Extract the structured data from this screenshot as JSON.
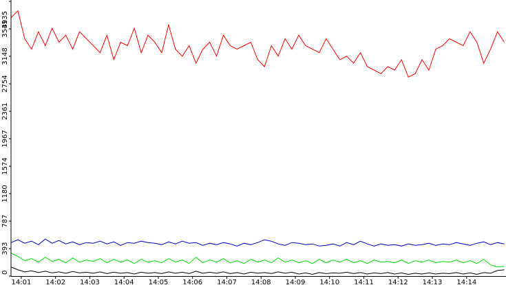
{
  "chart_data": {
    "type": "line",
    "title": "",
    "xlabel": "",
    "ylabel": "",
    "y_ticks": [
      "0",
      "393",
      "787",
      "1180",
      "1574",
      "1967",
      "2361",
      "2754",
      "3148",
      "3541",
      "3935"
    ],
    "ylim": [
      0,
      3935
    ],
    "x_ticks": [
      "14:01",
      "14:02",
      "14:03",
      "14:04",
      "14:05",
      "14:06",
      "14:07",
      "14:08",
      "14:09",
      "14:10",
      "14:11",
      "14:12",
      "14:13",
      "14:14"
    ],
    "xlim_minutes": [
      14.68,
      29.85
    ],
    "x_tick_minutes": [
      1,
      2,
      3,
      4,
      5,
      6,
      7,
      8,
      9,
      10,
      11,
      12,
      13,
      14
    ],
    "x_domain": [
      0.7,
      15.15
    ],
    "grid": false,
    "legend": "none",
    "series": [
      {
        "color": "#ff0000",
        "x": [
          0.7,
          0.9,
          1.1,
          1.3,
          1.5,
          1.7,
          1.9,
          2.1,
          2.3,
          2.5,
          2.7,
          2.9,
          3.1,
          3.3,
          3.5,
          3.7,
          3.9,
          4.1,
          4.3,
          4.5,
          4.7,
          4.9,
          5.1,
          5.3,
          5.5,
          5.7,
          5.9,
          6.1,
          6.3,
          6.5,
          6.7,
          6.9,
          7.1,
          7.3,
          7.5,
          7.7,
          7.9,
          8.1,
          8.3,
          8.5,
          8.7,
          8.9,
          9.1,
          9.3,
          9.5,
          9.7,
          9.9,
          10.1,
          10.3,
          10.5,
          10.7,
          10.9,
          11.1,
          11.3,
          11.5,
          11.7,
          11.9,
          12.1,
          12.3,
          12.5,
          12.7,
          12.9,
          13.1,
          13.3,
          13.5,
          13.7,
          13.9,
          14.1,
          14.3,
          14.5,
          14.7,
          14.9,
          15.1
        ],
        "values": [
          3700,
          3800,
          3400,
          3250,
          3500,
          3300,
          3550,
          3350,
          3450,
          3250,
          3500,
          3400,
          3300,
          3200,
          3450,
          3100,
          3350,
          3300,
          3550,
          3200,
          3450,
          3350,
          3200,
          3600,
          3250,
          3150,
          3300,
          3050,
          3250,
          3350,
          3150,
          3450,
          3300,
          3250,
          3300,
          3350,
          3100,
          3000,
          3300,
          3150,
          3400,
          3250,
          3450,
          3300,
          3250,
          3200,
          3400,
          3250,
          3100,
          3150,
          3050,
          3200,
          3000,
          2950,
          2900,
          3000,
          2950,
          3100,
          2850,
          2900,
          3100,
          2950,
          3250,
          3300,
          3400,
          3350,
          3300,
          3500,
          3350,
          3050,
          3250,
          3500,
          3350
        ]
      },
      {
        "color": "#0000c8",
        "x": [
          0.7,
          0.9,
          1.1,
          1.3,
          1.5,
          1.7,
          1.9,
          2.1,
          2.3,
          2.5,
          2.7,
          2.9,
          3.1,
          3.3,
          3.5,
          3.7,
          3.9,
          4.1,
          4.3,
          4.5,
          4.7,
          4.9,
          5.1,
          5.3,
          5.5,
          5.7,
          5.9,
          6.1,
          6.3,
          6.5,
          6.7,
          6.9,
          7.1,
          7.3,
          7.5,
          7.7,
          7.9,
          8.1,
          8.3,
          8.5,
          8.7,
          8.9,
          9.1,
          9.3,
          9.5,
          9.7,
          9.9,
          10.1,
          10.3,
          10.5,
          10.7,
          10.9,
          11.1,
          11.3,
          11.5,
          11.7,
          11.9,
          12.1,
          12.3,
          12.5,
          12.7,
          12.9,
          13.1,
          13.3,
          13.5,
          13.7,
          13.9,
          14.1,
          14.3,
          14.5,
          14.7,
          14.9,
          15.1
        ],
        "values": [
          480,
          520,
          470,
          500,
          450,
          530,
          470,
          510,
          460,
          490,
          450,
          480,
          470,
          500,
          460,
          490,
          440,
          480,
          470,
          500,
          480,
          470,
          450,
          490,
          460,
          500,
          470,
          480,
          440,
          470,
          450,
          480,
          460,
          430,
          470,
          450,
          480,
          520,
          500,
          460,
          440,
          480,
          470,
          450,
          460,
          430,
          440,
          460,
          430,
          480,
          450,
          500,
          460,
          430,
          460,
          440,
          450,
          430,
          460,
          440,
          450,
          470,
          440,
          460,
          450,
          480,
          460,
          440,
          470,
          490,
          450,
          480,
          460
        ]
      },
      {
        "color": "#00e000",
        "x": [
          0.7,
          0.9,
          1.1,
          1.3,
          1.5,
          1.7,
          1.9,
          2.1,
          2.3,
          2.5,
          2.7,
          2.9,
          3.1,
          3.3,
          3.5,
          3.7,
          3.9,
          4.1,
          4.3,
          4.5,
          4.7,
          4.9,
          5.1,
          5.3,
          5.5,
          5.7,
          5.9,
          6.1,
          6.3,
          6.5,
          6.7,
          6.9,
          7.1,
          7.3,
          7.5,
          7.7,
          7.9,
          8.1,
          8.3,
          8.5,
          8.7,
          8.9,
          9.1,
          9.3,
          9.5,
          9.7,
          9.9,
          10.1,
          10.3,
          10.5,
          10.7,
          10.9,
          11.1,
          11.3,
          11.5,
          11.7,
          11.9,
          12.1,
          12.3,
          12.5,
          12.7,
          12.9,
          13.1,
          13.3,
          13.5,
          13.7,
          13.9,
          14.1,
          14.3,
          14.5,
          14.7,
          14.9,
          15.1
        ],
        "values": [
          330,
          280,
          220,
          250,
          200,
          270,
          210,
          240,
          190,
          260,
          200,
          230,
          210,
          250,
          190,
          240,
          200,
          230,
          180,
          240,
          200,
          220,
          190,
          250,
          200,
          230,
          180,
          270,
          190,
          230,
          200,
          250,
          190,
          220,
          180,
          240,
          200,
          230,
          190,
          260,
          200,
          230,
          190,
          220,
          180,
          240,
          190,
          230,
          200,
          240,
          190,
          220,
          180,
          230,
          200,
          210,
          190,
          230,
          180,
          220,
          200,
          230,
          190,
          210,
          200,
          230,
          190,
          220,
          180,
          240,
          160,
          130,
          140
        ]
      },
      {
        "color": "#000000",
        "x": [
          0.7,
          0.9,
          1.1,
          1.3,
          1.5,
          1.7,
          1.9,
          2.1,
          2.3,
          2.5,
          2.7,
          2.9,
          3.1,
          3.3,
          3.5,
          3.7,
          3.9,
          4.1,
          4.3,
          4.5,
          4.7,
          4.9,
          5.1,
          5.3,
          5.5,
          5.7,
          5.9,
          6.1,
          6.3,
          6.5,
          6.7,
          6.9,
          7.1,
          7.3,
          7.5,
          7.7,
          7.9,
          8.1,
          8.3,
          8.5,
          8.7,
          8.9,
          9.1,
          9.3,
          9.5,
          9.7,
          9.9,
          10.1,
          10.3,
          10.5,
          10.7,
          10.9,
          11.1,
          11.3,
          11.5,
          11.7,
          11.9,
          12.1,
          12.3,
          12.5,
          12.7,
          12.9,
          13.1,
          13.3,
          13.5,
          13.7,
          13.9,
          14.1,
          14.3,
          14.5,
          14.7,
          14.9,
          15.1
        ],
        "values": [
          130,
          90,
          60,
          75,
          50,
          70,
          45,
          60,
          40,
          65,
          45,
          55,
          40,
          60,
          35,
          55,
          40,
          50,
          30,
          55,
          40,
          50,
          35,
          60,
          40,
          55,
          35,
          70,
          40,
          55,
          40,
          60,
          35,
          50,
          30,
          55,
          40,
          50,
          35,
          60,
          40,
          55,
          30,
          45,
          25,
          50,
          35,
          45,
          40,
          55,
          35,
          50,
          30,
          45,
          35,
          50,
          30,
          45,
          25,
          40,
          30,
          45,
          30,
          40,
          35,
          50,
          30,
          45,
          25,
          50,
          40,
          80,
          90
        ]
      }
    ]
  }
}
